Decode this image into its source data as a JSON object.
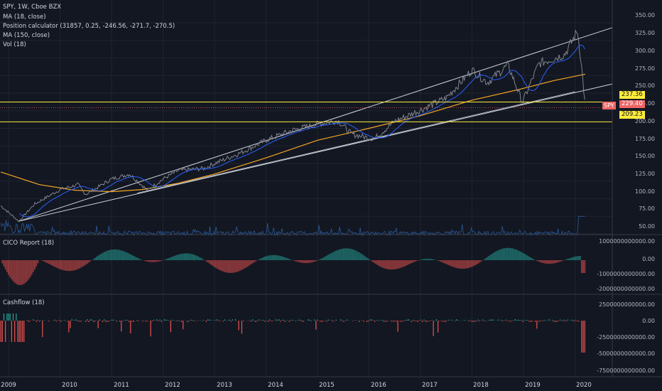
{
  "header": {
    "symbol_line": "SPY, 1W, Cboe BZX",
    "indicators": [
      "MA (18, close)",
      "Position calculator (31857, 0.25, -246.56, -271.7, -270.5)",
      "MA (150, close)",
      "Vol (18)"
    ]
  },
  "panes": {
    "cico_title": "CICO Report (18)",
    "cashflow_title": "Cashflow (18)"
  },
  "price_axis": {
    "ticks": [
      "350.00",
      "325.00",
      "300.00",
      "275.00",
      "250.00",
      "225.00",
      "200.00",
      "175.00",
      "150.00",
      "125.00",
      "100.00",
      "75.00",
      "50.00"
    ]
  },
  "cico_axis": {
    "ticks": [
      "1000000000000.00",
      "0.00",
      "-1000000000000.00",
      "-2000000000000.00"
    ]
  },
  "cashflow_axis": {
    "ticks": [
      "2500000000000.00",
      "0.00",
      "-2500000000000.00",
      "-5000000000000.00",
      "-7500000000000.00"
    ]
  },
  "time_axis": {
    "labels": [
      "2009",
      "2010",
      "2011",
      "2012",
      "2013",
      "2014",
      "2015",
      "2016",
      "2017",
      "2018",
      "2019",
      "2020"
    ]
  },
  "price_tags": {
    "level_upper": "237.36",
    "last_price": "229.40",
    "level_lower": "209.23",
    "symbol": "SPY"
  },
  "colors": {
    "background": "#131722",
    "price_line": "#8a8e99",
    "ma18": "#2962ff",
    "ma150": "#f5a623",
    "levels": "#ffeb3b",
    "trendlines": "#d1d4dc",
    "positive": "#26a69a",
    "negative": "#ef5350"
  },
  "chart_data": {
    "type": "line",
    "title": "SPY, 1W, Cboe BZX",
    "x": [
      2008.85,
      2009.2,
      2009.5,
      2010.0,
      2010.35,
      2010.5,
      2011.0,
      2011.35,
      2011.7,
      2012.0,
      2012.3,
      2012.8,
      2013.0,
      2013.5,
      2014.0,
      2014.5,
      2015.0,
      2015.4,
      2015.65,
      2016.1,
      2016.5,
      2017.0,
      2017.5,
      2018.0,
      2018.3,
      2018.7,
      2018.98,
      2019.3,
      2019.5,
      2019.8,
      2020.05,
      2020.12,
      2020.2
    ],
    "series": [
      {
        "values": [
          90,
          68,
          92,
          113,
          120,
          106,
          128,
          135,
          112,
          128,
          140,
          143,
          150,
          165,
          183,
          197,
          206,
          211,
          192,
          185,
          210,
          226,
          243,
          283,
          265,
          290,
          237,
          292,
          297,
          305,
          338,
          295,
          229.4
        ]
      }
    ],
    "levels": [
      237.36,
      209.23
    ],
    "ylim": [
      40,
      355
    ],
    "xlim": [
      2008.8,
      2020.6
    ]
  }
}
